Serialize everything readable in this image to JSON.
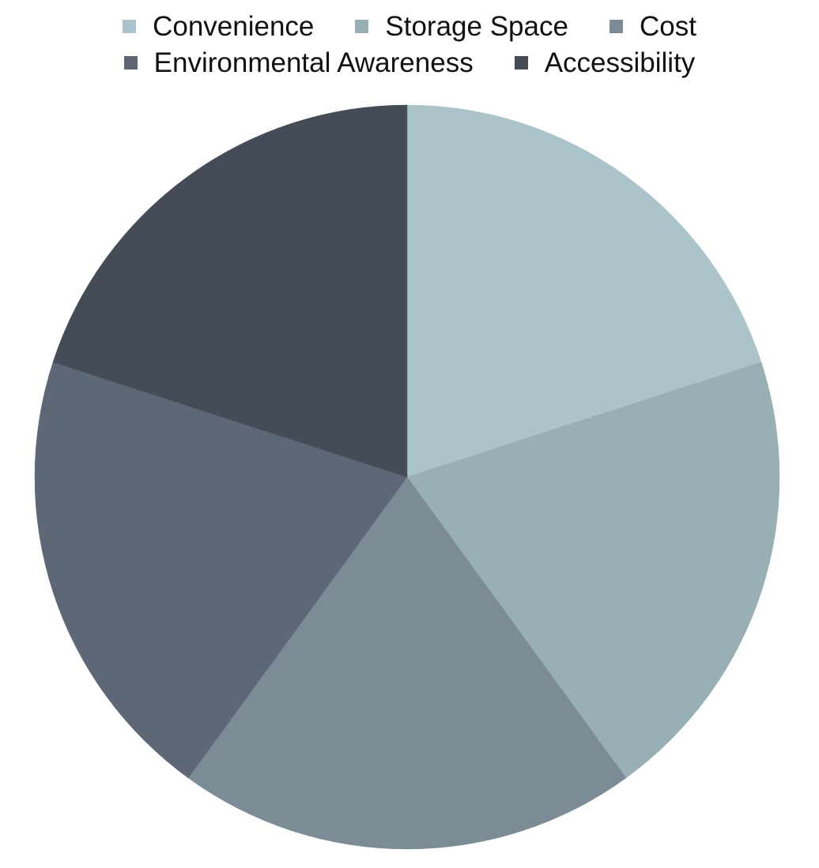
{
  "chart_data": {
    "type": "pie",
    "categories": [
      "Convenience",
      "Storage Space",
      "Cost",
      "Environmental Awareness",
      "Accessibility"
    ],
    "values": [
      20,
      20,
      20,
      20,
      20
    ],
    "colors": [
      "#abc4cb",
      "#97afb5",
      "#7b8c96",
      "#5d6776",
      "#464c57"
    ],
    "legend_position": "top",
    "start_angle": "12 o'clock",
    "direction": "clockwise"
  }
}
